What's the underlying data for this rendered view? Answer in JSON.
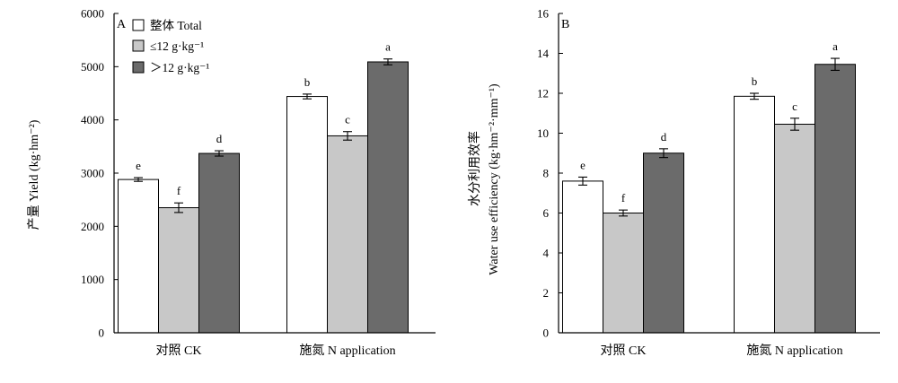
{
  "chart_data": [
    {
      "type": "bar",
      "panel": "A",
      "ylabel": "产量 Yield (kg·hm⁻²)",
      "ylim": [
        0,
        6000
      ],
      "yticks": [
        0,
        1000,
        2000,
        3000,
        4000,
        5000,
        6000
      ],
      "categories": [
        "对照 CK",
        "施氮 N application"
      ],
      "legend": "top-left",
      "grid": false,
      "series": [
        {
          "name": "整体 Total",
          "color": "#ffffff",
          "values": [
            2880,
            4440
          ],
          "errors": [
            35,
            45
          ],
          "letters": [
            "e",
            "b"
          ]
        },
        {
          "name": "≤12 g·kg⁻¹",
          "color": "#c8c8c8",
          "values": [
            2350,
            3700
          ],
          "errors": [
            90,
            80
          ],
          "letters": [
            "f",
            "c"
          ]
        },
        {
          "name": "＞12 g·kg⁻¹",
          "color": "#6b6b6b",
          "values": [
            3370,
            5090
          ],
          "errors": [
            50,
            55
          ],
          "letters": [
            "d",
            "a"
          ]
        }
      ]
    },
    {
      "type": "bar",
      "panel": "B",
      "ylabel": [
        "水分利用效率",
        "Water use efficiency (kg·hm⁻²·mm⁻¹)"
      ],
      "ylim": [
        0,
        16
      ],
      "yticks": [
        0,
        2,
        4,
        6,
        8,
        10,
        12,
        14,
        16
      ],
      "categories": [
        "对照 CK",
        "施氮 N application"
      ],
      "legend": "none",
      "grid": false,
      "series": [
        {
          "color": "#ffffff",
          "values": [
            7.6,
            11.85
          ],
          "errors": [
            0.2,
            0.15
          ],
          "letters": [
            "e",
            "b"
          ]
        },
        {
          "color": "#c8c8c8",
          "values": [
            6.0,
            10.45
          ],
          "errors": [
            0.15,
            0.3
          ],
          "letters": [
            "f",
            "c"
          ]
        },
        {
          "color": "#6b6b6b",
          "values": [
            9.0,
            13.45
          ],
          "errors": [
            0.22,
            0.3
          ],
          "letters": [
            "d",
            "a"
          ]
        }
      ]
    }
  ]
}
